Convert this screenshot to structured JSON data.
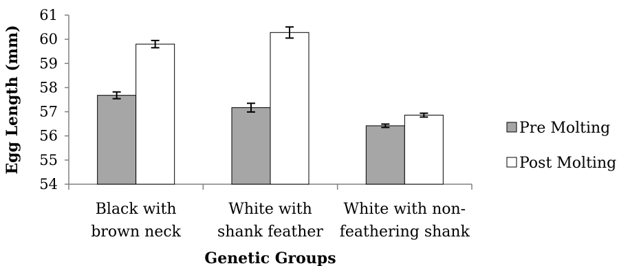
{
  "chart_data": {
    "type": "bar",
    "title": "",
    "xlabel": "Genetic Groups",
    "ylabel": "Egg Length (mm)",
    "ylim": [
      54,
      61
    ],
    "yticks": [
      "54",
      "55",
      "56",
      "57",
      "58",
      "59",
      "60",
      "61"
    ],
    "categories": [
      [
        "Black with",
        "brown neck"
      ],
      [
        "White with",
        "shank feather"
      ],
      [
        "White with non-",
        "feathering shank"
      ]
    ],
    "series": [
      {
        "name": "Pre Molting",
        "color": "#a6a6a6",
        "values": [
          57.68,
          57.17,
          56.42
        ],
        "errors": [
          0.14,
          0.18,
          0.07
        ]
      },
      {
        "name": "Post Molting",
        "color": "#ffffff",
        "values": [
          59.8,
          60.28,
          56.86
        ],
        "errors": [
          0.15,
          0.23,
          0.08
        ]
      }
    ],
    "grid": false,
    "legend": "right"
  }
}
